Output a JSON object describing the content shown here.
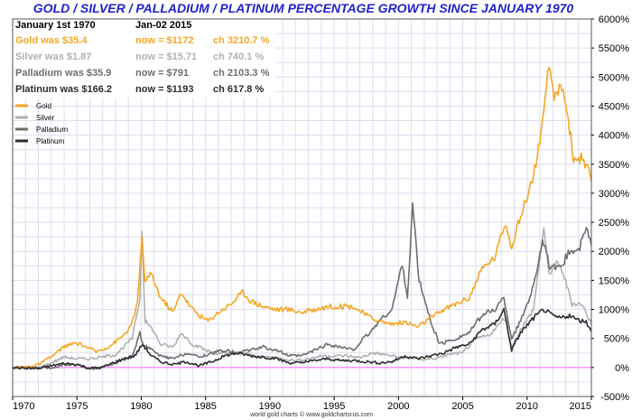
{
  "colors": {
    "gold": "#f5a623",
    "silver": "#b0b0b0",
    "palladium": "#6e6e6e",
    "platinum": "#2d2d2d",
    "title": "#2222cc",
    "grid": "#ddddf0",
    "zero_line": "#ff66ff",
    "frame": "#555555"
  },
  "chart_data": {
    "type": "line",
    "title": "GOLD / SILVER / PALLADIUM / PLATINUM PERCENTAGE GROWTH SINCE JANUARY 1970",
    "xlabel": "",
    "ylabel": "",
    "xlim": [
      1970,
      2015
    ],
    "ylim": [
      -500,
      6000
    ],
    "y_scale": "linear",
    "grid": true,
    "legend_position": "top-left",
    "x_ticks": [
      1970,
      1975,
      1980,
      1985,
      1990,
      1995,
      2000,
      2005,
      2010,
      2015
    ],
    "x_tick_labels": [
      "1970",
      "1975",
      "1980",
      "1985",
      "1990",
      "1995",
      "2000",
      "2005",
      "2010",
      "2015"
    ],
    "y_ticks": [
      -500,
      0,
      500,
      1000,
      1500,
      2000,
      2500,
      3000,
      3500,
      4000,
      4500,
      5000,
      5500,
      6000
    ],
    "y_tick_labels": [
      "-500%",
      "0%",
      "500%",
      "1000%",
      "1500%",
      "2000%",
      "2500%",
      "3000%",
      "3500%",
      "4000%",
      "4500%",
      "5000%",
      "5500%",
      "6000%"
    ],
    "info_box": {
      "header_left": "January 1st 1970",
      "header_right": "Jan-02  2015",
      "rows": [
        {
          "start": "Gold was $35.4",
          "now": "now = $1172",
          "change": "ch 3210.7 %",
          "series": "gold"
        },
        {
          "start": "Silver was $1.87",
          "now": "now = $15.71",
          "change": "ch 740.1 %",
          "series": "silver"
        },
        {
          "start": "Palladium was $35.9",
          "now": "now = $791",
          "change": "ch 2103.3 %",
          "series": "palladium"
        },
        {
          "start": "Platinum was $166.2",
          "now": "now = $1193",
          "change": "ch 617.8 %",
          "series": "platinum"
        }
      ]
    },
    "credit": "world gold charts  © www.goldchartsrus.com",
    "series": [
      {
        "name": "Gold",
        "key": "gold",
        "points": [
          [
            1970,
            0
          ],
          [
            1971,
            10
          ],
          [
            1972,
            50
          ],
          [
            1973,
            180
          ],
          [
            1974,
            360
          ],
          [
            1974.9,
            420
          ],
          [
            1975.5,
            380
          ],
          [
            1976.5,
            270
          ],
          [
            1977.5,
            360
          ],
          [
            1978.5,
            530
          ],
          [
            1979.2,
            700
          ],
          [
            1979.7,
            1100
          ],
          [
            1980.05,
            2200
          ],
          [
            1980.3,
            1500
          ],
          [
            1980.8,
            1600
          ],
          [
            1981.5,
            1200
          ],
          [
            1982.5,
            950
          ],
          [
            1983.1,
            1300
          ],
          [
            1983.8,
            1050
          ],
          [
            1984.5,
            900
          ],
          [
            1985.2,
            800
          ],
          [
            1986.0,
            950
          ],
          [
            1987.0,
            1100
          ],
          [
            1987.9,
            1300
          ],
          [
            1988.5,
            1150
          ],
          [
            1989.5,
            1050
          ],
          [
            1990.5,
            1000
          ],
          [
            1991.5,
            1000
          ],
          [
            1992.5,
            950
          ],
          [
            1993.5,
            1000
          ],
          [
            1994.5,
            1050
          ],
          [
            1995.5,
            1050
          ],
          [
            1996.5,
            1050
          ],
          [
            1997.5,
            900
          ],
          [
            1998.5,
            800
          ],
          [
            1999.5,
            750
          ],
          [
            2000.5,
            780
          ],
          [
            2001.5,
            700
          ],
          [
            2002.5,
            850
          ],
          [
            2003.5,
            1000
          ],
          [
            2004.5,
            1100
          ],
          [
            2005.5,
            1200
          ],
          [
            2006.5,
            1700
          ],
          [
            2007.5,
            1900
          ],
          [
            2008.3,
            2500
          ],
          [
            2008.8,
            2100
          ],
          [
            2009.5,
            2600
          ],
          [
            2010.5,
            3300
          ],
          [
            2011.3,
            4300
          ],
          [
            2011.7,
            5200
          ],
          [
            2012.2,
            4600
          ],
          [
            2012.7,
            4900
          ],
          [
            2013.2,
            4300
          ],
          [
            2013.6,
            3600
          ],
          [
            2014.2,
            3600
          ],
          [
            2014.7,
            3400
          ],
          [
            2015,
            3210
          ]
        ]
      },
      {
        "name": "Silver",
        "key": "silver",
        "points": [
          [
            1970,
            0
          ],
          [
            1972,
            -10
          ],
          [
            1973,
            80
          ],
          [
            1974,
            180
          ],
          [
            1975,
            150
          ],
          [
            1976,
            150
          ],
          [
            1977,
            180
          ],
          [
            1978,
            220
          ],
          [
            1979.3,
            500
          ],
          [
            1979.9,
            1200
          ],
          [
            1980.05,
            2400
          ],
          [
            1980.3,
            800
          ],
          [
            1980.9,
            650
          ],
          [
            1981.5,
            400
          ],
          [
            1982.5,
            350
          ],
          [
            1983.1,
            600
          ],
          [
            1984,
            400
          ],
          [
            1985,
            300
          ],
          [
            1986,
            230
          ],
          [
            1987,
            250
          ],
          [
            1988,
            250
          ],
          [
            1989,
            190
          ],
          [
            1990,
            180
          ],
          [
            1991,
            150
          ],
          [
            1992,
            120
          ],
          [
            1993,
            150
          ],
          [
            1994,
            200
          ],
          [
            1995,
            200
          ],
          [
            1996,
            200
          ],
          [
            1997,
            170
          ],
          [
            1998,
            250
          ],
          [
            1999,
            220
          ],
          [
            2000,
            180
          ],
          [
            2001,
            160
          ],
          [
            2002,
            140
          ],
          [
            2003,
            160
          ],
          [
            2004,
            230
          ],
          [
            2005,
            250
          ],
          [
            2006,
            500
          ],
          [
            2007,
            550
          ],
          [
            2008.3,
            850
          ],
          [
            2008.8,
            350
          ],
          [
            2009.5,
            650
          ],
          [
            2010.5,
            1000
          ],
          [
            2011.3,
            2400
          ],
          [
            2011.7,
            1600
          ],
          [
            2012.2,
            1800
          ],
          [
            2012.7,
            1700
          ],
          [
            2013.5,
            1100
          ],
          [
            2014.2,
            1100
          ],
          [
            2014.7,
            900
          ],
          [
            2015,
            740
          ]
        ]
      },
      {
        "name": "Palladium",
        "key": "palladium",
        "points": [
          [
            1970,
            0
          ],
          [
            1973,
            -10
          ],
          [
            1974,
            50
          ],
          [
            1975,
            50
          ],
          [
            1976,
            -30
          ],
          [
            1977,
            0
          ],
          [
            1978,
            80
          ],
          [
            1979.3,
            200
          ],
          [
            1979.9,
            600
          ],
          [
            1980.1,
            400
          ],
          [
            1980.8,
            300
          ],
          [
            1981.5,
            200
          ],
          [
            1982.5,
            150
          ],
          [
            1983.5,
            250
          ],
          [
            1984.5,
            180
          ],
          [
            1985.5,
            250
          ],
          [
            1986.5,
            300
          ],
          [
            1987.5,
            250
          ],
          [
            1988.5,
            300
          ],
          [
            1989.5,
            350
          ],
          [
            1990.5,
            300
          ],
          [
            1991.5,
            200
          ],
          [
            1992.5,
            200
          ],
          [
            1993.5,
            300
          ],
          [
            1994.5,
            400
          ],
          [
            1995.5,
            350
          ],
          [
            1996.5,
            300
          ],
          [
            1997.3,
            500
          ],
          [
            1997.8,
            600
          ],
          [
            1998.5,
            800
          ],
          [
            1999.5,
            1000
          ],
          [
            2000.3,
            1800
          ],
          [
            2000.7,
            1200
          ],
          [
            2001.1,
            2800
          ],
          [
            2001.6,
            1500
          ],
          [
            2002.5,
            800
          ],
          [
            2003.2,
            400
          ],
          [
            2004.5,
            500
          ],
          [
            2005.5,
            600
          ],
          [
            2006.5,
            900
          ],
          [
            2007.5,
            1000
          ],
          [
            2008.2,
            1200
          ],
          [
            2008.8,
            500
          ],
          [
            2009.5,
            800
          ],
          [
            2010.5,
            1400
          ],
          [
            2011.2,
            2200
          ],
          [
            2011.8,
            1700
          ],
          [
            2012.5,
            1700
          ],
          [
            2013.3,
            2000
          ],
          [
            2014,
            2000
          ],
          [
            2014.6,
            2400
          ],
          [
            2015,
            2103
          ]
        ]
      },
      {
        "name": "Platinum",
        "key": "platinum",
        "points": [
          [
            1970,
            0
          ],
          [
            1972,
            -20
          ],
          [
            1973,
            30
          ],
          [
            1974,
            70
          ],
          [
            1975,
            50
          ],
          [
            1976,
            -10
          ],
          [
            1977,
            0
          ],
          [
            1978,
            100
          ],
          [
            1979.5,
            200
          ],
          [
            1980.1,
            400
          ],
          [
            1980.8,
            200
          ],
          [
            1981.5,
            100
          ],
          [
            1982.5,
            50
          ],
          [
            1983.5,
            100
          ],
          [
            1984.5,
            30
          ],
          [
            1985.5,
            100
          ],
          [
            1986.5,
            200
          ],
          [
            1987.5,
            250
          ],
          [
            1988.5,
            200
          ],
          [
            1989.5,
            180
          ],
          [
            1990.5,
            150
          ],
          [
            1991.5,
            80
          ],
          [
            1992.5,
            80
          ],
          [
            1993.5,
            120
          ],
          [
            1994.5,
            150
          ],
          [
            1995.5,
            120
          ],
          [
            1996.5,
            120
          ],
          [
            1997.5,
            100
          ],
          [
            1998.5,
            80
          ],
          [
            1999.5,
            100
          ],
          [
            2000.5,
            200
          ],
          [
            2001.5,
            150
          ],
          [
            2002.5,
            200
          ],
          [
            2003.5,
            250
          ],
          [
            2004.5,
            350
          ],
          [
            2005.5,
            400
          ],
          [
            2006.5,
            650
          ],
          [
            2007.5,
            750
          ],
          [
            2008.2,
            1000
          ],
          [
            2008.8,
            300
          ],
          [
            2009.5,
            600
          ],
          [
            2010.5,
            850
          ],
          [
            2011.3,
            1000
          ],
          [
            2011.9,
            900
          ],
          [
            2012.5,
            850
          ],
          [
            2013.3,
            900
          ],
          [
            2014,
            800
          ],
          [
            2014.6,
            800
          ],
          [
            2015,
            618
          ]
        ]
      }
    ]
  }
}
